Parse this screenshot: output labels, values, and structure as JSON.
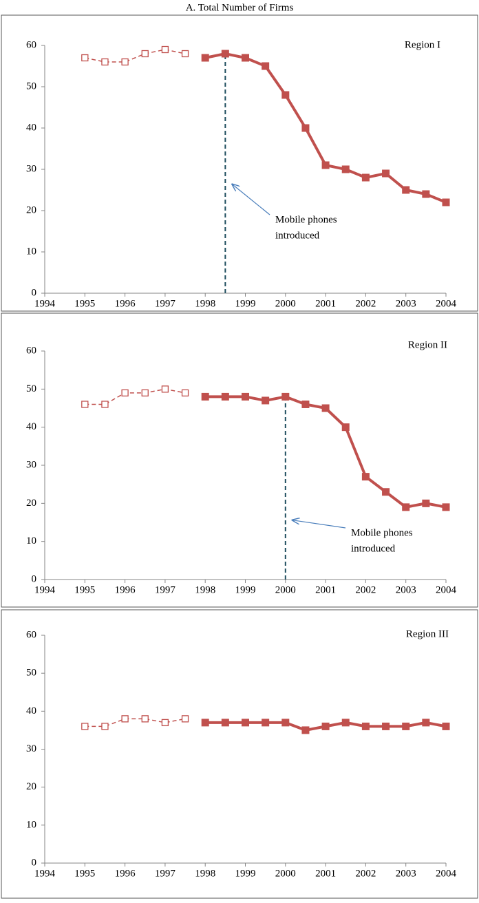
{
  "title": "A. Total Number of Firms",
  "chart_data": [
    {
      "type": "line",
      "title": "Region I",
      "x": [
        1995,
        1995.5,
        1996,
        1996.5,
        1997,
        1997.5,
        1998,
        1998.5,
        1999,
        1999.5,
        2000,
        2000.5,
        2001,
        2001.5,
        2002,
        2002.5,
        2003,
        2003.5,
        2004
      ],
      "series": [
        {
          "color": "#c0504d",
          "marker": "open-square",
          "dashed": true,
          "values": [
            57,
            56,
            56,
            58,
            59,
            58,
            null,
            null,
            null,
            null,
            null,
            null,
            null,
            null,
            null,
            null,
            null,
            null,
            null
          ]
        },
        {
          "color": "#c0504d",
          "marker": "filled-square",
          "dashed": false,
          "values": [
            null,
            null,
            null,
            null,
            null,
            null,
            57,
            58,
            57,
            55,
            48,
            40,
            31,
            30,
            28,
            29,
            25,
            24,
            22
          ]
        }
      ],
      "vline": {
        "x": 1998.5,
        "color": "#1f4e5f"
      },
      "annotation": [
        "Mobile phones",
        "introduced"
      ],
      "xlim": [
        1994,
        2004
      ],
      "xticks": [
        1994,
        1995,
        1996,
        1997,
        1998,
        1999,
        2000,
        2001,
        2002,
        2003,
        2004
      ],
      "ylim": [
        0,
        60
      ],
      "yticks": [
        0,
        10,
        20,
        30,
        40,
        50,
        60
      ]
    },
    {
      "type": "line",
      "title": "Region II",
      "x": [
        1995,
        1995.5,
        1996,
        1996.5,
        1997,
        1997.5,
        1998,
        1998.5,
        1999,
        1999.5,
        2000,
        2000.5,
        2001,
        2001.5,
        2002,
        2002.5,
        2003,
        2003.5,
        2004
      ],
      "series": [
        {
          "color": "#c0504d",
          "marker": "open-square",
          "dashed": true,
          "values": [
            46,
            46,
            49,
            49,
            50,
            49,
            null,
            null,
            null,
            null,
            null,
            null,
            null,
            null,
            null,
            null,
            null,
            null,
            null
          ]
        },
        {
          "color": "#c0504d",
          "marker": "filled-square",
          "dashed": false,
          "values": [
            null,
            null,
            null,
            null,
            null,
            null,
            48,
            48,
            48,
            47,
            48,
            46,
            45,
            40,
            27,
            23,
            19,
            20,
            19
          ]
        }
      ],
      "vline": {
        "x": 2000,
        "color": "#1f4e5f"
      },
      "annotation": [
        "Mobile phones",
        "introduced"
      ],
      "xlim": [
        1994,
        2004
      ],
      "xticks": [
        1994,
        1995,
        1996,
        1997,
        1998,
        1999,
        2000,
        2001,
        2002,
        2003,
        2004
      ],
      "ylim": [
        0,
        60
      ],
      "yticks": [
        0,
        10,
        20,
        30,
        40,
        50,
        60
      ]
    },
    {
      "type": "line",
      "title": "Region III",
      "x": [
        1995,
        1995.5,
        1996,
        1996.5,
        1997,
        1997.5,
        1998,
        1998.5,
        1999,
        1999.5,
        2000,
        2000.5,
        2001,
        2001.5,
        2002,
        2002.5,
        2003,
        2003.5,
        2004
      ],
      "series": [
        {
          "color": "#c0504d",
          "marker": "open-square",
          "dashed": true,
          "values": [
            36,
            36,
            38,
            38,
            37,
            38,
            null,
            null,
            null,
            null,
            null,
            null,
            null,
            null,
            null,
            null,
            null,
            null,
            null
          ]
        },
        {
          "color": "#c0504d",
          "marker": "filled-square",
          "dashed": false,
          "values": [
            null,
            null,
            null,
            null,
            null,
            null,
            37,
            37,
            37,
            37,
            37,
            35,
            36,
            37,
            36,
            36,
            36,
            37,
            36
          ]
        }
      ],
      "xlim": [
        1994,
        2004
      ],
      "xticks": [
        1994,
        1995,
        1996,
        1997,
        1998,
        1999,
        2000,
        2001,
        2002,
        2003,
        2004
      ],
      "ylim": [
        0,
        60
      ],
      "yticks": [
        0,
        10,
        20,
        30,
        40,
        50,
        60
      ]
    }
  ]
}
